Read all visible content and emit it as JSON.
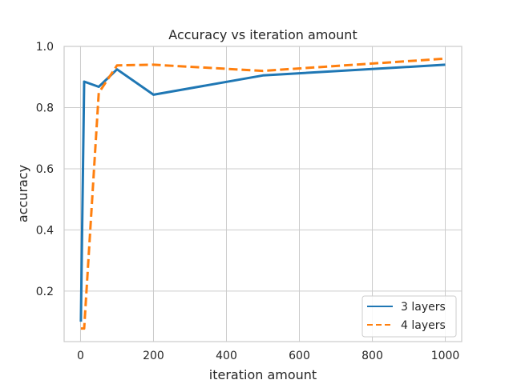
{
  "chart_data": {
    "type": "line",
    "title": "Accuracy vs iteration amount",
    "xlabel": "iteration amount",
    "ylabel": "accuracy",
    "xlim": [
      -45,
      1045
    ],
    "ylim": [
      0.035,
      1.0
    ],
    "xticks": [
      0,
      200,
      400,
      600,
      800,
      1000
    ],
    "yticks": [
      0.2,
      0.4,
      0.6,
      0.8,
      1.0
    ],
    "xtick_labels": [
      "0",
      "200",
      "400",
      "600",
      "800",
      "1000"
    ],
    "ytick_labels": [
      "0.2",
      "0.4",
      "0.6",
      "0.8",
      "1.0"
    ],
    "grid": true,
    "legend_position": "lower-right",
    "series": [
      {
        "name": "3 layers",
        "color": "#1f77b4",
        "style": "solid",
        "x": [
          1,
          10,
          50,
          100,
          200,
          500,
          1000
        ],
        "y": [
          0.1,
          0.885,
          0.868,
          0.925,
          0.842,
          0.905,
          0.94
        ]
      },
      {
        "name": "4 layers",
        "color": "#ff7f0e",
        "style": "dashed",
        "x": [
          1,
          10,
          50,
          100,
          200,
          500,
          1000
        ],
        "y": [
          0.078,
          0.078,
          0.848,
          0.938,
          0.94,
          0.92,
          0.96
        ]
      }
    ]
  }
}
